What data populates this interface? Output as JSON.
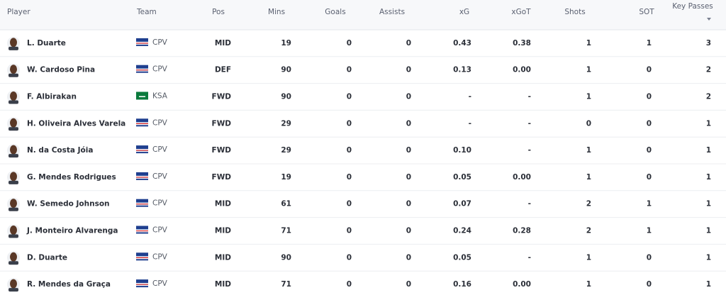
{
  "table": {
    "columns": [
      "Player",
      "Team",
      "Pos",
      "Mins",
      "Goals",
      "Assists",
      "xG",
      "xGoT",
      "Shots",
      "SOT",
      "Key Passes"
    ],
    "rows": [
      [
        "L. Duarte",
        "CPV",
        "MID",
        "19",
        "0",
        "0",
        "0.43",
        "0.38",
        "1",
        "1",
        "3"
      ],
      [
        "W. Cardoso Pina",
        "CPV",
        "DEF",
        "90",
        "0",
        "0",
        "0.13",
        "0.00",
        "1",
        "0",
        "2"
      ],
      [
        "F. Albirakan",
        "KSA",
        "FWD",
        "90",
        "0",
        "0",
        "-",
        "-",
        "1",
        "0",
        "2"
      ],
      [
        "H. Oliveira Alves Varela",
        "CPV",
        "FWD",
        "29",
        "0",
        "0",
        "-",
        "-",
        "0",
        "0",
        "1"
      ],
      [
        "N. da Costa Jóia",
        "CPV",
        "FWD",
        "29",
        "0",
        "0",
        "0.10",
        "-",
        "1",
        "0",
        "1"
      ],
      [
        "G. Mendes Rodrigues",
        "CPV",
        "FWD",
        "19",
        "0",
        "0",
        "0.05",
        "0.00",
        "1",
        "0",
        "1"
      ],
      [
        "W. Semedo Johnson",
        "CPV",
        "MID",
        "61",
        "0",
        "0",
        "0.07",
        "-",
        "2",
        "1",
        "1"
      ],
      [
        "J. Monteiro Alvarenga",
        "CPV",
        "MID",
        "71",
        "0",
        "0",
        "0.24",
        "0.28",
        "2",
        "1",
        "1"
      ],
      [
        "D. Duarte",
        "CPV",
        "MID",
        "90",
        "0",
        "0",
        "0.05",
        "-",
        "1",
        "0",
        "1"
      ],
      [
        "R. Mendes da Graça",
        "CPV",
        "MID",
        "71",
        "0",
        "0",
        "0.16",
        "0.00",
        "1",
        "0",
        "1"
      ]
    ]
  }
}
